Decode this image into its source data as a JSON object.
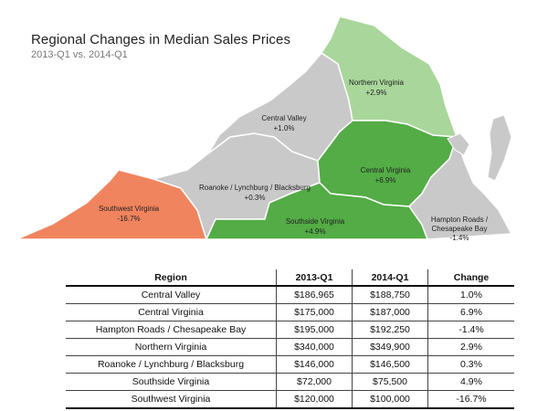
{
  "title": "Regional Changes in Median Sales Prices",
  "subtitle": "2013-Q1 vs. 2014-Q1",
  "colors": {
    "gray_region": "#c9c9c9",
    "northern_virginia": "#a9d69a",
    "green_region": "#53ac45",
    "southwest_virginia": "#f0845e",
    "border": "#ffffff"
  },
  "map": {
    "regions": [
      {
        "name": "Northern Virginia",
        "change": "+2.9%",
        "color": "#a9d69a"
      },
      {
        "name": "Central Valley",
        "change": "+1.0%",
        "color": "#c9c9c9"
      },
      {
        "name": "Central Virginia",
        "change": "+6.9%",
        "color": "#53ac45"
      },
      {
        "name": "Roanoke / Lynchburg / Blacksburg",
        "change": "+0.3%",
        "color": "#c9c9c9"
      },
      {
        "name": "Southwest Virginia",
        "change": "-16.7%",
        "color": "#f0845e"
      },
      {
        "name": "Southside Virginia",
        "change": "+4.9%",
        "color": "#53ac45"
      },
      {
        "name": "Hampton Roads /",
        "name2": "Chesapeake Bay",
        "change": "-1.4%",
        "color": "#c9c9c9"
      }
    ]
  },
  "table": {
    "headers": [
      "Region",
      "2013-Q1",
      "2014-Q1",
      "Change"
    ],
    "rows": [
      [
        "Central Valley",
        "$186,965",
        "$188,750",
        "1.0%"
      ],
      [
        "Central Virginia",
        "$175,000",
        "$187,000",
        "6.9%"
      ],
      [
        "Hampton Roads / Chesapeake Bay",
        "$195,000",
        "$192,250",
        "-1.4%"
      ],
      [
        "Northern Virginia",
        "$340,000",
        "$349,900",
        "2.9%"
      ],
      [
        "Roanoke / Lynchburg / Blacksburg",
        "$146,000",
        "$146,500",
        "0.3%"
      ],
      [
        "Southside Virginia",
        "$72,000",
        "$75,500",
        "4.9%"
      ],
      [
        "Southwest Virginia",
        "$120,000",
        "$100,000",
        "-16.7%"
      ]
    ]
  }
}
